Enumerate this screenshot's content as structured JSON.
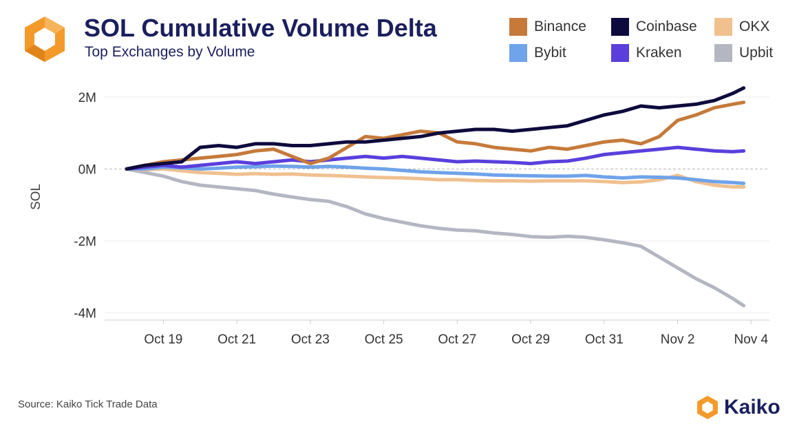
{
  "header": {
    "title": "SOL Cumulative Volume Delta",
    "subtitle": "Top Exchanges by Volume"
  },
  "footer": {
    "source": "Source: Kaiko Tick Trade Data",
    "brand": "Kaiko"
  },
  "colors": {
    "title": "#1b1f5e",
    "logo_orange": "#f39a2b",
    "zero_line": "#b5b5b5",
    "grid": "#eeeeee"
  },
  "legend": [
    {
      "name": "Binance",
      "color": "#c57a3a"
    },
    {
      "name": "Coinbase",
      "color": "#0d0b3d"
    },
    {
      "name": "OKX",
      "color": "#f0c08f"
    },
    {
      "name": "Bybit",
      "color": "#6fa3ea"
    },
    {
      "name": "Kraken",
      "color": "#5a3fdc"
    },
    {
      "name": "Upbit",
      "color": "#b4b7c2"
    }
  ],
  "chart_data": {
    "type": "line",
    "ylabel": "SOL",
    "xlabel": "",
    "ylim": [
      -4.2,
      2.4
    ],
    "y_ticks": [
      {
        "value": 2,
        "label": "2M"
      },
      {
        "value": 0,
        "label": "0M"
      },
      {
        "value": -2,
        "label": "-2M"
      },
      {
        "value": -4,
        "label": "-4M"
      }
    ],
    "x_ticks": [
      {
        "day": 19,
        "label": "Oct 19"
      },
      {
        "day": 21,
        "label": "Oct 21"
      },
      {
        "day": 23,
        "label": "Oct 23"
      },
      {
        "day": 25,
        "label": "Oct 25"
      },
      {
        "day": 27,
        "label": "Oct 27"
      },
      {
        "day": 29,
        "label": "Oct 29"
      },
      {
        "day": 31,
        "label": "Oct 31"
      },
      {
        "day": 33,
        "label": "Nov 2"
      },
      {
        "day": 35,
        "label": "Nov 4"
      }
    ],
    "xlim": [
      17.4,
      35.5
    ],
    "grid": true,
    "series": [
      {
        "name": "Upbit",
        "x": [
          18.0,
          18.5,
          19.0,
          19.5,
          20.0,
          20.5,
          21.0,
          21.5,
          22.0,
          22.5,
          23.0,
          23.5,
          24.0,
          24.5,
          25.0,
          25.5,
          26.0,
          26.5,
          27.0,
          27.5,
          28.0,
          28.5,
          29.0,
          29.5,
          30.0,
          30.5,
          31.0,
          31.5,
          32.0,
          32.5,
          33.0,
          33.5,
          34.0,
          34.5,
          34.8
        ],
        "y": [
          0,
          -0.1,
          -0.2,
          -0.35,
          -0.45,
          -0.5,
          -0.55,
          -0.6,
          -0.7,
          -0.78,
          -0.85,
          -0.9,
          -1.05,
          -1.25,
          -1.38,
          -1.48,
          -1.58,
          -1.65,
          -1.7,
          -1.72,
          -1.78,
          -1.82,
          -1.88,
          -1.9,
          -1.87,
          -1.9,
          -1.97,
          -2.05,
          -2.15,
          -2.45,
          -2.75,
          -3.05,
          -3.3,
          -3.6,
          -3.8
        ]
      },
      {
        "name": "OKX",
        "x": [
          18.0,
          18.5,
          19.0,
          19.5,
          20.0,
          20.5,
          21.0,
          21.5,
          22.0,
          22.5,
          23.0,
          23.5,
          24.0,
          24.5,
          25.0,
          25.5,
          26.0,
          26.5,
          27.0,
          27.5,
          28.0,
          28.5,
          29.0,
          29.5,
          30.0,
          30.5,
          31.0,
          31.5,
          32.0,
          32.5,
          33.0,
          33.5,
          34.0,
          34.5,
          34.8
        ],
        "y": [
          0,
          -0.02,
          0.0,
          -0.05,
          -0.1,
          -0.12,
          -0.15,
          -0.13,
          -0.15,
          -0.14,
          -0.17,
          -0.18,
          -0.2,
          -0.22,
          -0.24,
          -0.25,
          -0.27,
          -0.3,
          -0.3,
          -0.32,
          -0.33,
          -0.33,
          -0.34,
          -0.33,
          -0.33,
          -0.33,
          -0.35,
          -0.38,
          -0.36,
          -0.3,
          -0.18,
          -0.35,
          -0.45,
          -0.5,
          -0.5
        ]
      },
      {
        "name": "Bybit",
        "x": [
          18.0,
          18.5,
          19.0,
          19.5,
          20.0,
          20.5,
          21.0,
          21.5,
          22.0,
          22.5,
          23.0,
          23.5,
          24.0,
          24.5,
          25.0,
          25.5,
          26.0,
          26.5,
          27.0,
          27.5,
          28.0,
          28.5,
          29.0,
          29.5,
          30.0,
          30.5,
          31.0,
          31.5,
          32.0,
          32.5,
          33.0,
          33.5,
          34.0,
          34.5,
          34.8
        ],
        "y": [
          0,
          0.0,
          0.05,
          0.03,
          0.0,
          0.02,
          0.05,
          0.06,
          0.08,
          0.07,
          0.05,
          0.07,
          0.05,
          0.02,
          0.0,
          -0.04,
          -0.08,
          -0.1,
          -0.12,
          -0.14,
          -0.17,
          -0.18,
          -0.19,
          -0.2,
          -0.2,
          -0.18,
          -0.22,
          -0.25,
          -0.22,
          -0.23,
          -0.25,
          -0.3,
          -0.35,
          -0.38,
          -0.4
        ]
      },
      {
        "name": "Kraken",
        "x": [
          18.0,
          18.5,
          19.0,
          19.5,
          20.0,
          20.5,
          21.0,
          21.5,
          22.0,
          22.5,
          23.0,
          23.5,
          24.0,
          24.5,
          25.0,
          25.5,
          26.0,
          26.5,
          27.0,
          27.5,
          28.0,
          28.5,
          29.0,
          29.5,
          30.0,
          30.5,
          31.0,
          31.5,
          32.0,
          32.5,
          33.0,
          33.5,
          34.0,
          34.5,
          34.8
        ],
        "y": [
          0,
          0.05,
          0.1,
          0.05,
          0.1,
          0.15,
          0.2,
          0.15,
          0.2,
          0.25,
          0.2,
          0.25,
          0.3,
          0.35,
          0.3,
          0.35,
          0.3,
          0.25,
          0.2,
          0.22,
          0.2,
          0.18,
          0.15,
          0.2,
          0.22,
          0.3,
          0.4,
          0.45,
          0.5,
          0.55,
          0.6,
          0.55,
          0.5,
          0.48,
          0.5
        ]
      },
      {
        "name": "Binance",
        "x": [
          18.0,
          18.5,
          19.0,
          19.5,
          20.0,
          20.5,
          21.0,
          21.5,
          22.0,
          22.5,
          23.0,
          23.5,
          24.0,
          24.5,
          25.0,
          25.5,
          26.0,
          26.5,
          27.0,
          27.5,
          28.0,
          28.5,
          29.0,
          29.5,
          30.0,
          30.5,
          31.0,
          31.5,
          32.0,
          32.5,
          33.0,
          33.5,
          34.0,
          34.5,
          34.8
        ],
        "y": [
          0,
          0.1,
          0.2,
          0.25,
          0.3,
          0.35,
          0.4,
          0.5,
          0.55,
          0.35,
          0.15,
          0.3,
          0.6,
          0.9,
          0.85,
          0.95,
          1.05,
          1.0,
          0.75,
          0.7,
          0.6,
          0.55,
          0.5,
          0.6,
          0.55,
          0.65,
          0.75,
          0.8,
          0.7,
          0.9,
          1.35,
          1.5,
          1.7,
          1.8,
          1.85
        ]
      },
      {
        "name": "Coinbase",
        "x": [
          18.0,
          18.5,
          19.0,
          19.5,
          20.0,
          20.5,
          21.0,
          21.5,
          22.0,
          22.5,
          23.0,
          23.5,
          24.0,
          24.5,
          25.0,
          25.5,
          26.0,
          26.5,
          27.0,
          27.5,
          28.0,
          28.5,
          29.0,
          29.5,
          30.0,
          30.5,
          31.0,
          31.5,
          32.0,
          32.5,
          33.0,
          33.5,
          34.0,
          34.5,
          34.8
        ],
        "y": [
          0,
          0.1,
          0.15,
          0.2,
          0.6,
          0.65,
          0.6,
          0.7,
          0.7,
          0.65,
          0.65,
          0.7,
          0.75,
          0.75,
          0.8,
          0.85,
          0.9,
          1.0,
          1.05,
          1.1,
          1.1,
          1.05,
          1.1,
          1.15,
          1.2,
          1.35,
          1.5,
          1.6,
          1.75,
          1.7,
          1.75,
          1.8,
          1.9,
          2.1,
          2.25
        ]
      }
    ]
  }
}
